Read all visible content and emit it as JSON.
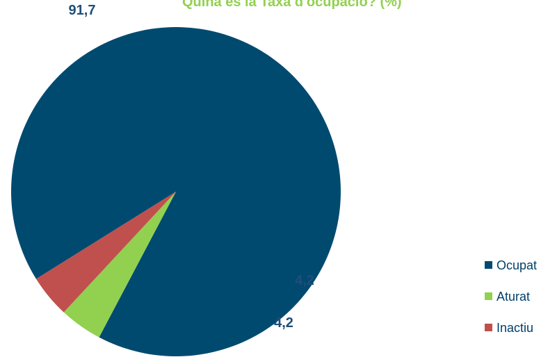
{
  "chart_data": {
    "type": "pie",
    "title": "Quina és la Taxa d'ocupació? (%)",
    "categories": [
      "Ocupat",
      "Aturat",
      "Inactiu"
    ],
    "values": [
      91.7,
      4.2,
      4.2
    ],
    "data_labels": [
      "91,7",
      "4,2",
      "4,2"
    ],
    "colors": [
      "#004a70",
      "#92d050",
      "#c0504d"
    ],
    "label_color": "#1f4e79",
    "legend_position": "right-bottom"
  }
}
